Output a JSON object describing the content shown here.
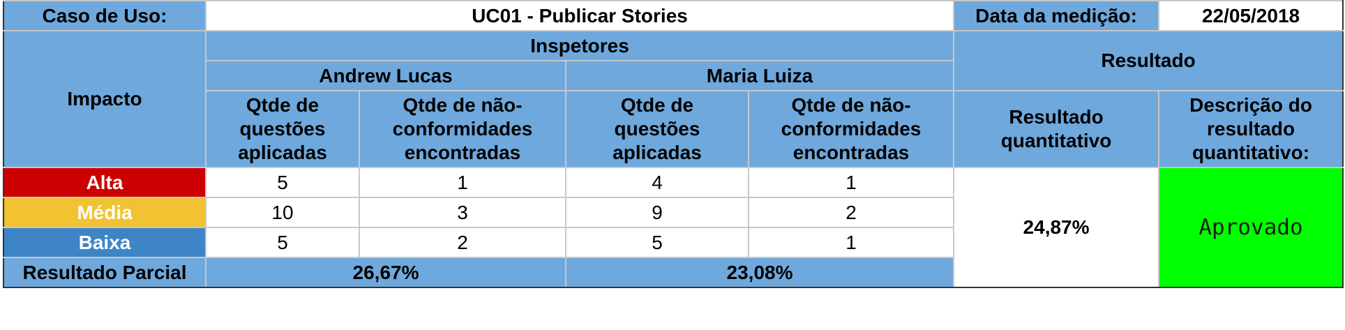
{
  "header": {
    "use_case_label": "Caso de Uso:",
    "use_case_value": "UC01 - Publicar Stories",
    "date_label": "Data da medição:",
    "date_value": "22/05/2018"
  },
  "columns": {
    "impact": "Impacto",
    "inspectors": "Inspetores",
    "result": "Resultado",
    "inspector_names": [
      "Andrew Lucas",
      "Maria Luiza"
    ],
    "questions_applied": "Qtde de questões aplicadas",
    "nonconformities_found": "Qtde de não-conformidades encontradas",
    "quantitative_result": "Resultado quantitativo",
    "result_description": "Descrição do resultado quantitativo:"
  },
  "rows": [
    {
      "level": "Alta",
      "color": "#cc0000",
      "andrew_q": "5",
      "andrew_nc": "1",
      "maria_q": "4",
      "maria_nc": "1"
    },
    {
      "level": "Média",
      "color": "#f1c232",
      "andrew_q": "10",
      "andrew_nc": "3",
      "maria_q": "9",
      "maria_nc": "2"
    },
    {
      "level": "Baixa",
      "color": "#3d85c6",
      "andrew_q": "5",
      "andrew_nc": "2",
      "maria_q": "5",
      "maria_nc": "1"
    }
  ],
  "partial": {
    "label": "Resultado Parcial",
    "andrew": "26,67%",
    "maria": "23,08%"
  },
  "result": {
    "quantitative": "24,87%",
    "description": "Aprovado",
    "description_color": "#00ff00"
  },
  "colors": {
    "header_blue": "#6fa8dc",
    "grid_line": "#c8c8c8"
  }
}
